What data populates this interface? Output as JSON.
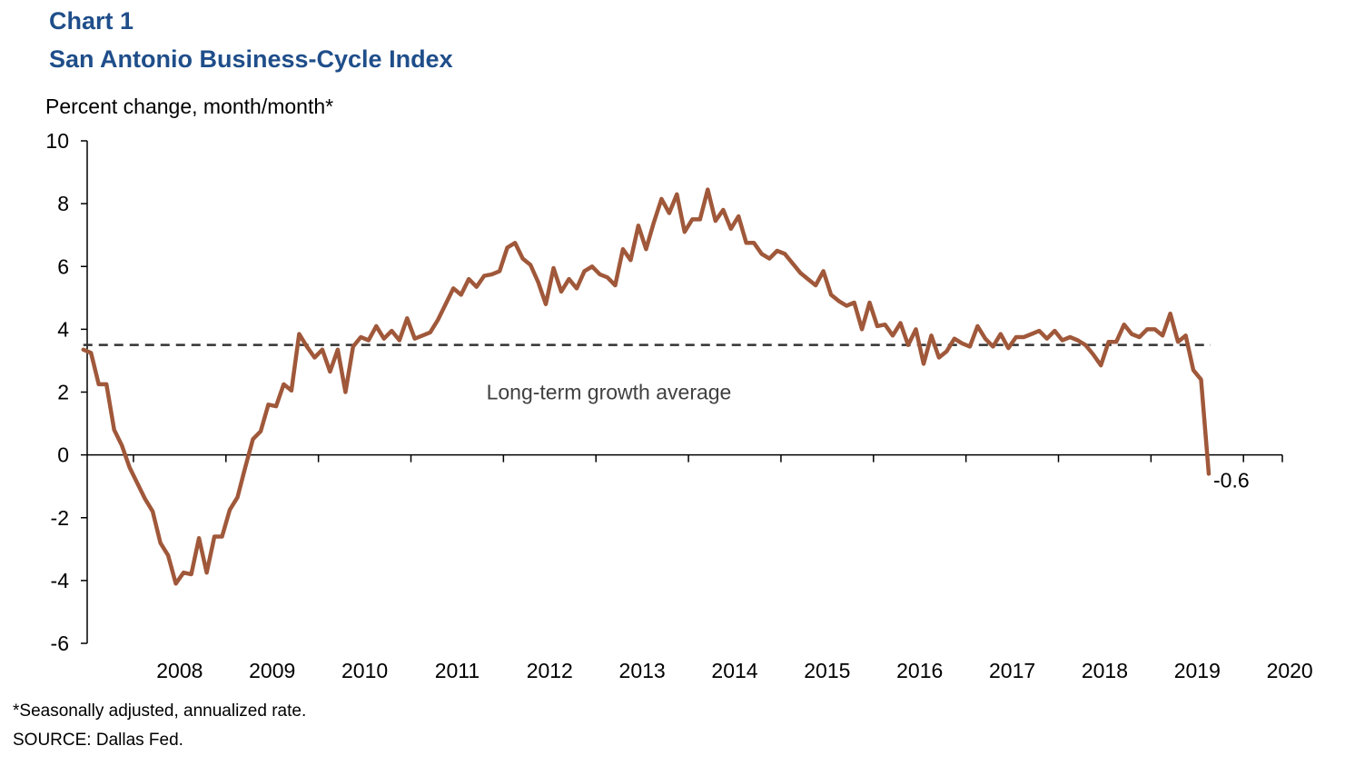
{
  "header": {
    "chart_number": "Chart 1",
    "title": "San Antonio Business-Cycle Index"
  },
  "footer": {
    "note": "*Seasonally adjusted, annualized rate.",
    "source": "SOURCE: Dallas Fed."
  },
  "colors": {
    "title": "#1f4e8a",
    "series": "#a0583a",
    "average_line": "#333333",
    "axis": "#000000"
  },
  "chart_data": {
    "type": "line",
    "title": "San Antonio Business-Cycle Index",
    "ylabel": "Percent change, month/month*",
    "xlabel": "",
    "ylim": [
      -6,
      10
    ],
    "yticks": [
      -6,
      -4,
      -2,
      0,
      2,
      4,
      6,
      8,
      10
    ],
    "ytick_labels": [
      "-6",
      "-4",
      "-2",
      "0",
      "2",
      "4",
      "6",
      "8",
      "10"
    ],
    "xlim": [
      2007.5,
      2020.42
    ],
    "xticks": [
      2008,
      2009,
      2010,
      2011,
      2012,
      2013,
      2014,
      2015,
      2016,
      2017,
      2018,
      2019,
      2020
    ],
    "xtick_labels": [
      "2008",
      "2009",
      "2010",
      "2011",
      "2012",
      "2013",
      "2014",
      "2015",
      "2016",
      "2017",
      "2018",
      "2019",
      "2020"
    ],
    "reference_line": {
      "value": 3.5,
      "style": "dashed",
      "label": "Long-term growth average"
    },
    "end_label": "-0.6",
    "grid": false,
    "series": [
      {
        "start": "2007-06",
        "frequency": "monthly",
        "values": [
          3.35,
          3.25,
          2.25,
          2.25,
          0.8,
          0.3,
          -0.4,
          -0.9,
          -1.4,
          -1.8,
          -2.8,
          -3.2,
          -4.1,
          -3.75,
          -3.8,
          -2.65,
          -3.75,
          -2.6,
          -2.6,
          -1.75,
          -1.35,
          -0.4,
          0.5,
          0.75,
          1.6,
          1.55,
          2.25,
          2.05,
          3.85,
          3.45,
          3.1,
          3.35,
          2.65,
          3.35,
          2.0,
          3.45,
          3.75,
          3.65,
          4.1,
          3.7,
          3.95,
          3.65,
          4.35,
          3.7,
          3.8,
          3.9,
          4.3,
          4.8,
          5.3,
          5.1,
          5.6,
          5.35,
          5.7,
          5.75,
          5.85,
          6.6,
          6.75,
          6.25,
          6.05,
          5.5,
          4.8,
          5.95,
          5.2,
          5.6,
          5.3,
          5.85,
          6.0,
          5.75,
          5.65,
          5.4,
          6.55,
          6.2,
          7.3,
          6.55,
          7.4,
          8.15,
          7.7,
          8.3,
          7.1,
          7.5,
          7.5,
          8.45,
          7.45,
          7.8,
          7.2,
          7.6,
          6.75,
          6.75,
          6.4,
          6.25,
          6.5,
          6.4,
          6.1,
          5.8,
          5.6,
          5.4,
          5.85,
          5.1,
          4.9,
          4.75,
          4.85,
          4.0,
          4.85,
          4.1,
          4.15,
          3.8,
          4.2,
          3.5,
          4.0,
          2.9,
          3.8,
          3.1,
          3.3,
          3.7,
          3.55,
          3.45,
          4.1,
          3.7,
          3.45,
          3.85,
          3.4,
          3.75,
          3.75,
          3.85,
          3.95,
          3.7,
          3.95,
          3.65,
          3.75,
          3.65,
          3.5,
          3.2,
          2.85,
          3.6,
          3.6,
          4.15,
          3.85,
          3.75,
          4.0,
          4.0,
          3.8,
          4.5,
          3.6,
          3.8,
          2.7,
          2.4,
          -0.6
        ]
      }
    ]
  }
}
